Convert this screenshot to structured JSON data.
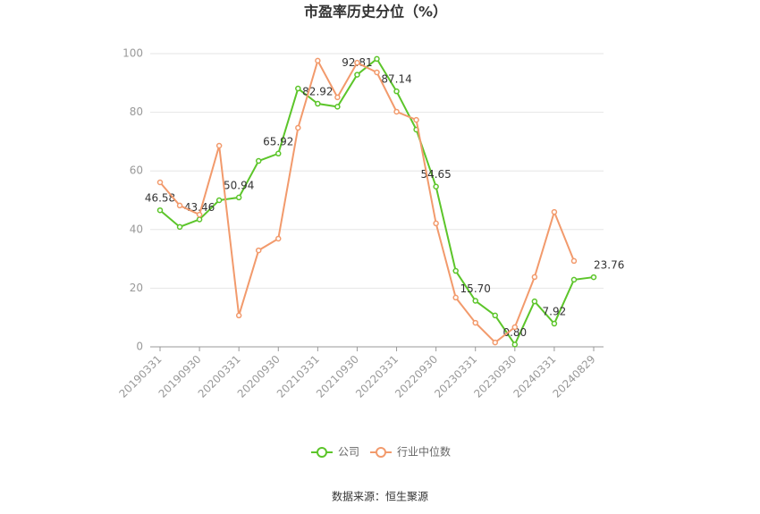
{
  "chart_data": {
    "type": "line",
    "title": "市盈率历史分位（%）",
    "categories": [
      "20190331",
      null,
      "20190930",
      null,
      "20200331",
      null,
      "20200930",
      null,
      "20210331",
      null,
      "20210930",
      null,
      "20220331",
      null,
      "20220930",
      null,
      "20230331",
      null,
      "20230930",
      null,
      "20240331",
      null,
      "20240829"
    ],
    "series": [
      {
        "name": "公司",
        "color": "#5cc52a",
        "values": [
          46.58,
          40.9,
          43.46,
          50.0,
          50.94,
          63.4,
          65.92,
          88.1,
          82.92,
          81.9,
          92.81,
          98.2,
          87.14,
          74.1,
          54.65,
          25.9,
          15.7,
          10.7,
          0.8,
          15.5,
          7.92,
          22.9,
          23.76
        ],
        "value_labels": [
          "46.58",
          null,
          "43.46",
          null,
          "50.94",
          null,
          "65.92",
          null,
          "82.92",
          null,
          "92.81",
          null,
          "87.14",
          null,
          "54.65",
          null,
          "15.70",
          null,
          "0.80",
          null,
          "7.92",
          null,
          "23.76"
        ]
      },
      {
        "name": "行业中位数",
        "color": "#f29a6c",
        "values": [
          56.1,
          48.2,
          45.1,
          68.6,
          10.7,
          32.9,
          36.9,
          74.7,
          97.6,
          85.1,
          96.9,
          93.6,
          80.2,
          77.4,
          42.1,
          16.8,
          8.2,
          1.5,
          6.7,
          23.8,
          46.0,
          29.3,
          null
        ]
      }
    ],
    "ylim": [
      0,
      100
    ],
    "yticks": [
      0,
      20,
      40,
      60,
      80,
      100
    ],
    "grid": true,
    "legend": "bottom",
    "source": "数据来源：恒生聚源"
  }
}
